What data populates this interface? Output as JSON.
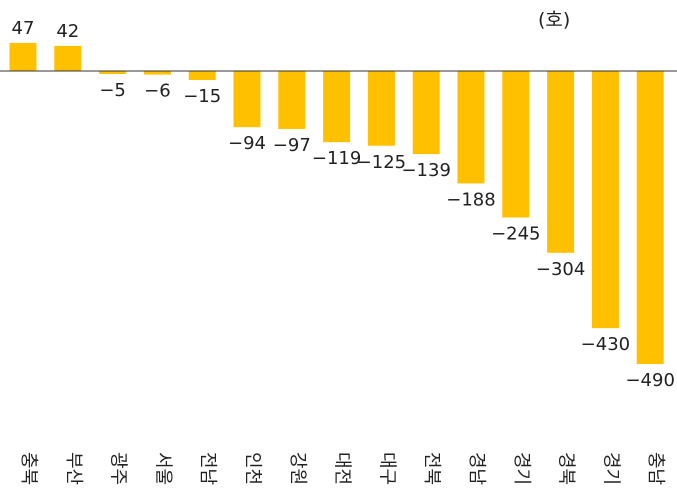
{
  "chart_data": {
    "type": "bar",
    "title": "",
    "unit_label": "(호)",
    "categories": [
      "충북",
      "부산",
      "광주",
      "서울",
      "전남",
      "인천",
      "강원",
      "대전",
      "대구",
      "전북",
      "경남",
      "경기",
      "경북",
      "경기",
      "충남"
    ],
    "values": [
      47,
      42,
      -5,
      -6,
      -15,
      -94,
      -97,
      -119,
      -125,
      -139,
      -188,
      -245,
      -304,
      -430,
      -490
    ],
    "ylim": [
      -500,
      60
    ],
    "bar_color": "#FFC000",
    "grid": false
  }
}
